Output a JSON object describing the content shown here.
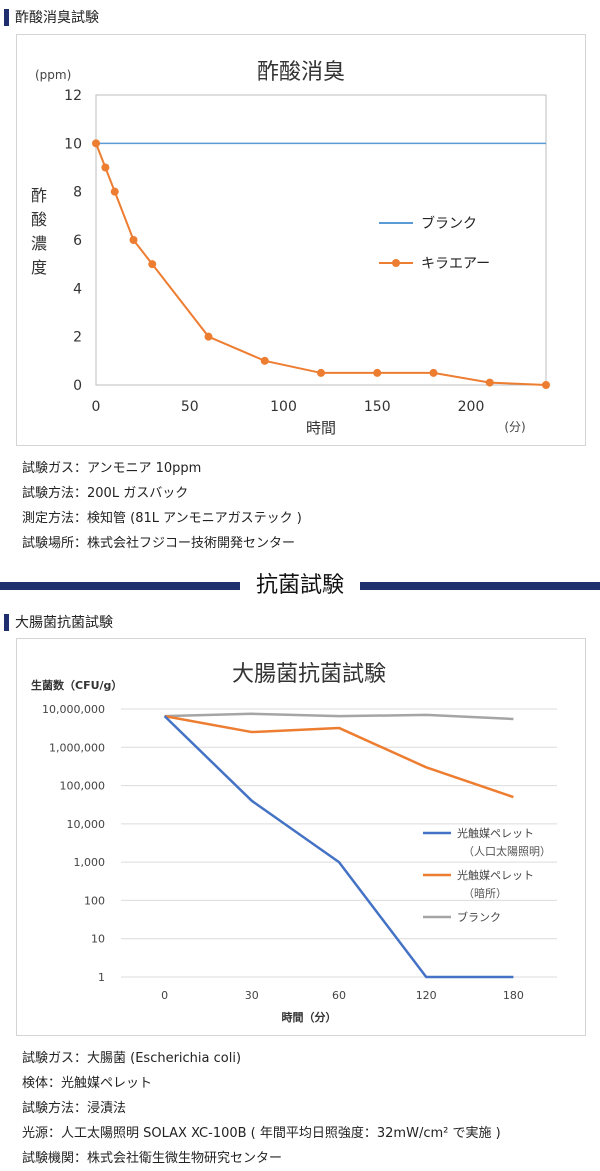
{
  "section1": {
    "heading": "酢酸消臭試験",
    "info": [
      "試験ガス：アンモニア 10ppm",
      "試験方法：200L ガスバック",
      "測定方法：検知管 (81L アンモニアガステック )",
      "試験場所：株式会社フジコー技術開発センター"
    ]
  },
  "divider": {
    "title": "抗菌試験"
  },
  "section2": {
    "heading": "大腸菌抗菌試験",
    "info": [
      "試験ガス：大腸菌 (Escherichia coli)",
      "検体：光触媒ペレット",
      "試験方法：浸漬法",
      "光源：人工太陽照明 SOLAX XC-100B ( 年間平均日照強度：32mW/cm² で実施 )",
      "試験機関：株式会社衛生微生物研究センター"
    ]
  },
  "chart_data": [
    {
      "type": "line",
      "title": "酢酸消臭",
      "unit_label": "(ppm)",
      "ylabel": "酢酸濃度",
      "xlabel": "時間",
      "xunit": "(分)",
      "xlim": [
        0,
        240
      ],
      "ylim": [
        0,
        12
      ],
      "xticks": [
        0,
        50,
        100,
        150,
        200
      ],
      "yticks": [
        0,
        2,
        4,
        6,
        8,
        10,
        12
      ],
      "grid": false,
      "legend_position": "right",
      "series": [
        {
          "name": "ブランク",
          "color": "#5b9bd5",
          "markers": false,
          "x": [
            0,
            240
          ],
          "y": [
            10,
            10
          ]
        },
        {
          "name": "キラエアー",
          "color": "#ed7d31",
          "markers": true,
          "x": [
            0,
            5,
            10,
            20,
            30,
            60,
            90,
            120,
            150,
            180,
            210,
            240
          ],
          "y": [
            10,
            9,
            8,
            6,
            5,
            2,
            1,
            0.5,
            0.5,
            0.5,
            0.1,
            0
          ]
        }
      ]
    },
    {
      "type": "line",
      "title": "大腸菌抗菌試験",
      "ylabel": "生菌数（CFU/g）",
      "xlabel": "時間（分）",
      "scale_y": "log",
      "categories": [
        "0",
        "30",
        "60",
        "120",
        "180"
      ],
      "yticks": [
        1,
        10,
        100,
        1000,
        10000,
        100000,
        1000000,
        10000000
      ],
      "ytick_labels": [
        "1",
        "10",
        "100",
        "1,000",
        "10,000",
        "100,000",
        "1,000,000",
        "10,000,000"
      ],
      "grid": true,
      "legend_position": "right",
      "series": [
        {
          "name": "光触媒ペレット",
          "name_note": "（人口太陽照明）",
          "color": "#4472c4",
          "values": [
            6500000,
            40000,
            1000,
            1,
            1
          ]
        },
        {
          "name": "光触媒ペレット",
          "name_note": "（暗所）",
          "color": "#ed7d31",
          "values": [
            6500000,
            2500000,
            3200000,
            300000,
            50000
          ]
        },
        {
          "name": "ブランク",
          "color": "#a5a5a5",
          "values": [
            6500000,
            7500000,
            6500000,
            7000000,
            5500000
          ]
        }
      ]
    }
  ]
}
